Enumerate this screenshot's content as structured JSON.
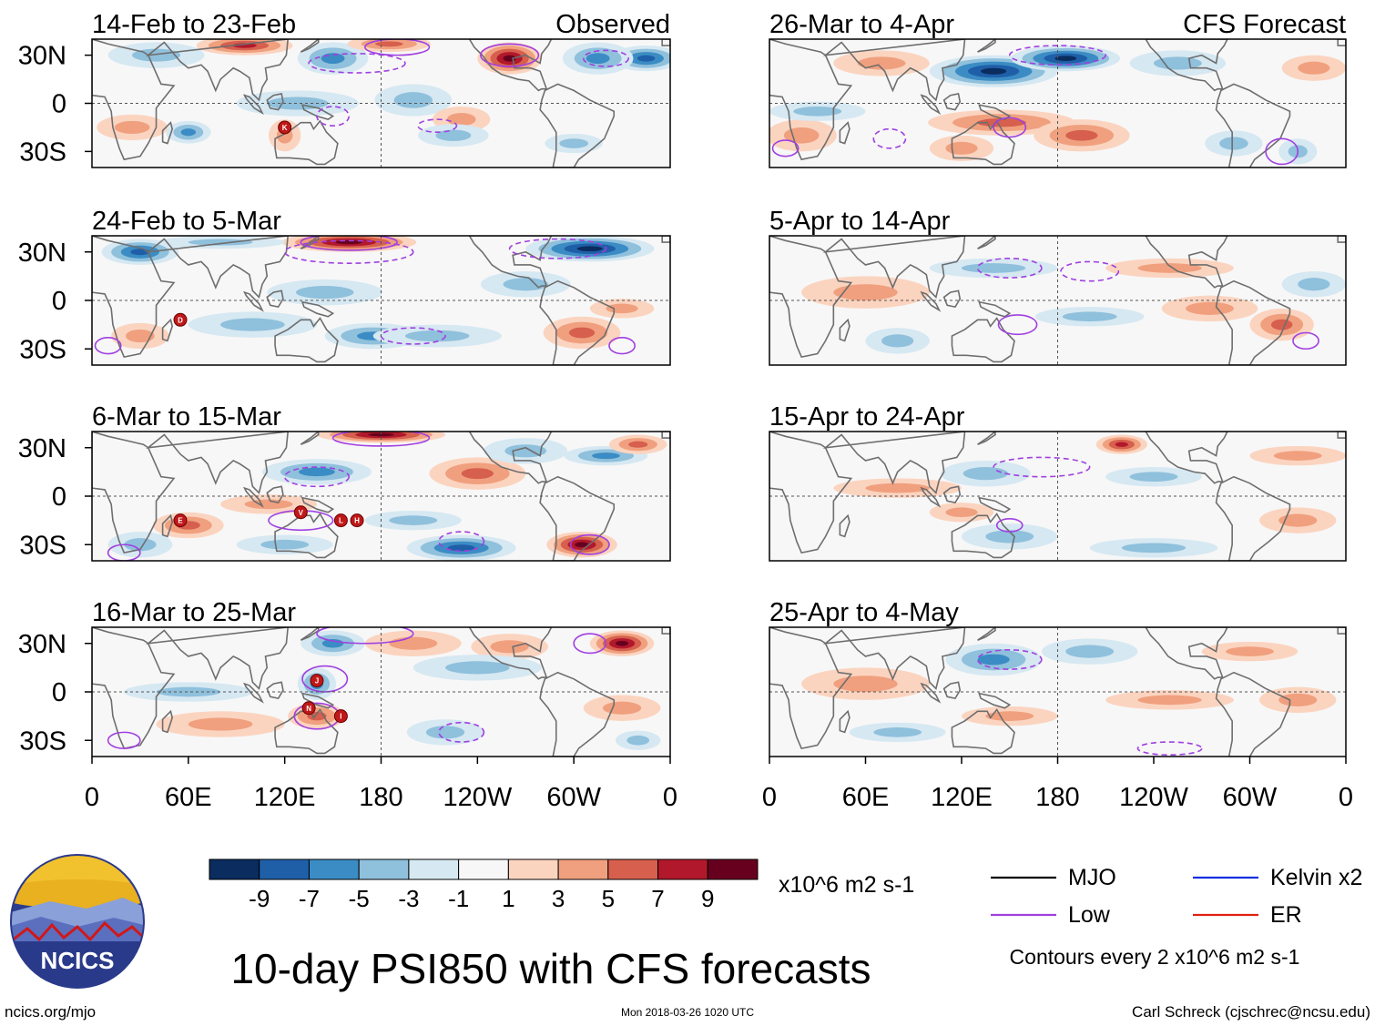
{
  "chart_data": {
    "type": "heatmap",
    "variable": "PSI850",
    "title": "10-day PSI850 with CFS forecasts",
    "x_ticks": [
      "0",
      "60E",
      "120E",
      "180",
      "120W",
      "60W",
      "0"
    ],
    "y_ticks": [
      "30N",
      "0",
      "30S"
    ],
    "lon_range": [
      0,
      360
    ],
    "lat_range": [
      -40,
      40
    ],
    "column_labels": {
      "observed": "Observed",
      "forecast": "CFS Forecast"
    },
    "panels": [
      {
        "period": "14-Feb to 23-Feb",
        "source": "Observed",
        "cyclones": [
          "K"
        ]
      },
      {
        "period": "24-Feb to 5-Mar",
        "source": "Observed",
        "cyclones": [
          "D"
        ]
      },
      {
        "period": "6-Mar to 15-Mar",
        "source": "Observed",
        "cyclones": [
          "E",
          "V",
          "L",
          "H"
        ]
      },
      {
        "period": "16-Mar to 25-Mar",
        "source": "Observed",
        "cyclones": [
          "J",
          "N",
          "I"
        ]
      },
      {
        "period": "26-Mar to 4-Apr",
        "source": "CFS Forecast",
        "cyclones": []
      },
      {
        "period": "5-Apr to 14-Apr",
        "source": "CFS Forecast",
        "cyclones": []
      },
      {
        "period": "15-Apr to 24-Apr",
        "source": "CFS Forecast",
        "cyclones": []
      },
      {
        "period": "25-Apr to 4-May",
        "source": "CFS Forecast",
        "cyclones": []
      }
    ],
    "colorbar": {
      "labels": [
        "-9",
        "-7",
        "-5",
        "-3",
        "-1",
        "1",
        "3",
        "5",
        "7",
        "9"
      ],
      "colors": [
        "#0a2c5e",
        "#1f5fa8",
        "#3b8cc4",
        "#8fc0dc",
        "#d6e8f2",
        "#f7f7f7",
        "#fbd4c0",
        "#f0a07e",
        "#d65f4e",
        "#b2182b",
        "#67001f"
      ],
      "units": "x10^6 m2 s-1"
    },
    "legend": [
      {
        "label": "MJO",
        "color": "#000000"
      },
      {
        "label": "Kelvin x2",
        "color": "#1030e0"
      },
      {
        "label": "Low",
        "color": "#a040e0"
      },
      {
        "label": "ER",
        "color": "#e02010"
      }
    ],
    "contour_note": "Contours every 2 x10^6 m2 s-1"
  },
  "footer": {
    "logo_text": "NCICS",
    "url": "ncics.org/mjo",
    "timestamp": "Mon 2018-03-26 1020 UTC",
    "credit": "Carl Schreck (cjschrec@ncsu.edu)"
  }
}
